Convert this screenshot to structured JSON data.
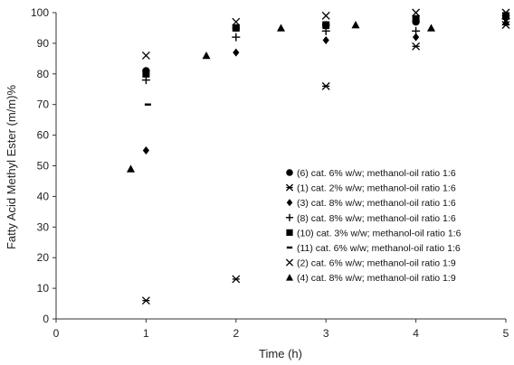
{
  "chart_data": {
    "type": "scatter",
    "title": "",
    "xlabel": "Time (h)",
    "ylabel": "Fatty Acid Methyl Ester (m/m)%",
    "xlim": [
      0,
      5
    ],
    "ylim": [
      0,
      100
    ],
    "xticks": [
      "0",
      "1",
      "2",
      "3",
      "4",
      "5"
    ],
    "yticks": [
      "0",
      "10",
      "20",
      "30",
      "40",
      "50",
      "60",
      "70",
      "80",
      "90",
      "100"
    ],
    "grid": false,
    "legend_position": "bottom-right",
    "marker_color": "#000000",
    "series": [
      {
        "name": "(6) cat. 6% w/w; methanol-oil ratio 1:6",
        "marker": "circle",
        "points": [
          [
            1,
            81
          ],
          [
            2,
            95
          ],
          [
            3,
            96
          ],
          [
            4,
            97
          ],
          [
            5,
            99
          ]
        ]
      },
      {
        "name": "(1) cat. 2% w/w; methanol-oil ratio 1:6",
        "marker": "asterisk",
        "points": [
          [
            1,
            6
          ],
          [
            2,
            13
          ],
          [
            3,
            76
          ],
          [
            4,
            89
          ],
          [
            5,
            96
          ]
        ]
      },
      {
        "name": "(3) cat. 8% w/w; methanol-oil ratio 1:6",
        "marker": "diamond",
        "points": [
          [
            1,
            55
          ],
          [
            2,
            87
          ],
          [
            3,
            91
          ],
          [
            4,
            92
          ],
          [
            5,
            98
          ]
        ]
      },
      {
        "name": "(8) cat. 8% w/w; methanol-oil ratio 1:6",
        "marker": "plus",
        "points": [
          [
            1,
            78
          ],
          [
            2,
            92
          ],
          [
            3,
            94
          ],
          [
            4,
            94
          ],
          [
            5,
            98
          ]
        ]
      },
      {
        "name": "(10) cat. 3% w/w; methanol-oil ratio 1:6",
        "marker": "square",
        "points": [
          [
            1,
            80
          ],
          [
            2,
            95
          ],
          [
            3,
            96
          ],
          [
            4,
            98
          ],
          [
            5,
            99
          ]
        ]
      },
      {
        "name": "(11) cat. 6% w/w; methanol-oil ratio 1:6",
        "marker": "dash",
        "points": [
          [
            1.02,
            70
          ],
          [
            2,
            95
          ],
          [
            3,
            95
          ],
          [
            4,
            97
          ],
          [
            5,
            98
          ]
        ]
      },
      {
        "name": "(2) cat. 6% w/w; methanol-oil ratio 1:9",
        "marker": "x",
        "points": [
          [
            1,
            86
          ],
          [
            2,
            97
          ],
          [
            3,
            99
          ],
          [
            4,
            100
          ],
          [
            5,
            100
          ]
        ]
      },
      {
        "name": "(4) cat. 8% w/w; methanol-oil ratio 1:9",
        "marker": "triangle",
        "points": [
          [
            0.83,
            49
          ],
          [
            1.67,
            86
          ],
          [
            2.5,
            95
          ],
          [
            3.33,
            96
          ],
          [
            4.17,
            95
          ],
          [
            5,
            97
          ]
        ]
      }
    ]
  }
}
